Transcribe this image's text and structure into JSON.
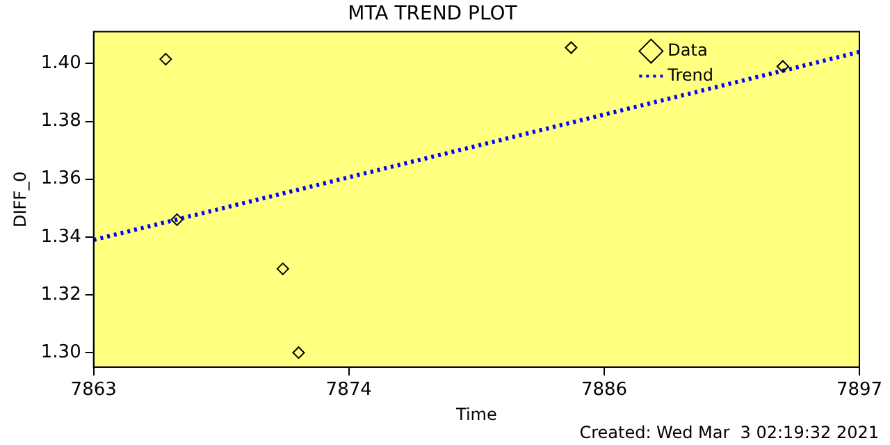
{
  "chart_data": {
    "type": "scatter",
    "title": "MTA TREND PLOT",
    "xlabel": "Time",
    "ylabel": "DIFF_0",
    "annotations": [
      "Created: Wed Mar  3 02:19:32 2021"
    ],
    "xlim": [
      7863,
      7897
    ],
    "xticks": [
      {
        "value": 7863,
        "label": "7863"
      },
      {
        "value": 7874.33,
        "label": "7874"
      },
      {
        "value": 7885.67,
        "label": "7886"
      },
      {
        "value": 7897,
        "label": "7897"
      }
    ],
    "ylim": [
      1.295,
      1.411
    ],
    "yticks": [
      {
        "value": 1.3,
        "label": "1.30"
      },
      {
        "value": 1.32,
        "label": "1.32"
      },
      {
        "value": 1.34,
        "label": "1.34"
      },
      {
        "value": 1.36,
        "label": "1.36"
      },
      {
        "value": 1.38,
        "label": "1.38"
      },
      {
        "value": 1.4,
        "label": "1.40"
      }
    ],
    "grid": false,
    "legend": "top right",
    "series": [
      {
        "name": "Data",
        "type": "scatter",
        "color": "#000000",
        "marker": "diamond",
        "x": [
          7866.2,
          7866.7,
          7871.4,
          7872.1,
          7884.2,
          7893.6
        ],
        "values": [
          1.4015,
          1.346,
          1.329,
          1.3,
          1.4055,
          1.399
        ]
      },
      {
        "name": "Trend",
        "type": "line",
        "color": "#0000ff",
        "marker": "none",
        "line_style": "dotted",
        "x": [
          7863,
          7897
        ],
        "values": [
          1.339,
          1.404
        ]
      }
    ]
  }
}
